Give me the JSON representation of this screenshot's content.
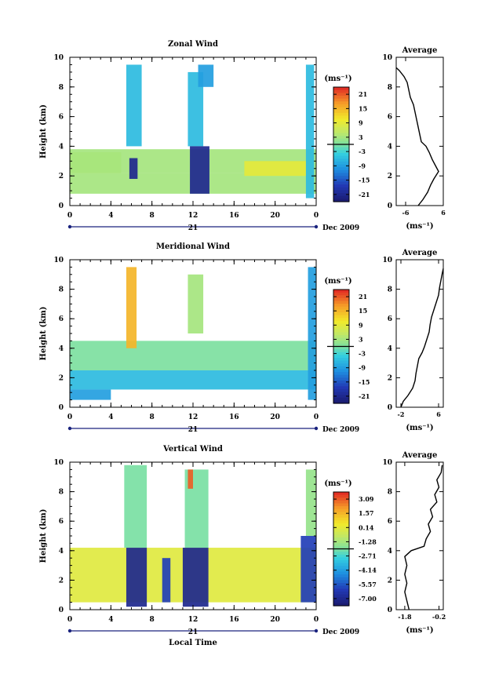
{
  "chart_data": [
    {
      "type": "heatmap",
      "title": "Zonal Wind",
      "ylabel": "Height (km)",
      "xlabel": "",
      "unit_label": "(ms⁻¹)",
      "x_ticks": [
        "0",
        "4",
        "8",
        "12",
        "16",
        "20",
        "0"
      ],
      "y_ticks": [
        "0",
        "2",
        "4",
        "6",
        "8",
        "10"
      ],
      "xlim": [
        0,
        24
      ],
      "ylim": [
        0,
        10
      ],
      "date_tick": "21",
      "date_label": "Dec 2009",
      "colorbar": {
        "ticks": [
          "21",
          "15",
          "9",
          "3",
          "-3",
          "-9",
          "-15",
          "-21"
        ],
        "range": [
          -24,
          24
        ]
      },
      "average": {
        "title": "Average",
        "xlabel": "(ms⁻¹)",
        "x_ticks": [
          "-6",
          "6"
        ],
        "xlim": [
          -9,
          6
        ],
        "y_ticks": [
          "0",
          "2",
          "4",
          "6",
          "8",
          "10"
        ],
        "profile": [
          [
            -2,
            0
          ],
          [
            -0.5,
            0.4
          ],
          [
            1,
            0.9
          ],
          [
            2,
            1.4
          ],
          [
            3,
            1.8
          ],
          [
            4.5,
            2.3
          ],
          [
            3.5,
            2.7
          ],
          [
            2.5,
            3.1
          ],
          [
            1.5,
            3.6
          ],
          [
            0.5,
            4.0
          ],
          [
            -1,
            4.3
          ],
          [
            -1.5,
            4.8
          ],
          [
            -2,
            5.3
          ],
          [
            -2.5,
            5.8
          ],
          [
            -3,
            6.3
          ],
          [
            -3.5,
            6.8
          ],
          [
            -4.5,
            7.3
          ],
          [
            -5,
            7.8
          ],
          [
            -5.5,
            8.3
          ],
          [
            -6.5,
            8.7
          ],
          [
            -8,
            9.1
          ],
          [
            -9,
            9.3
          ]
        ]
      },
      "patches": [
        {
          "x": 0,
          "x2": 5,
          "y": 2.2,
          "y2": 3.6,
          "value": 6
        },
        {
          "x": 0,
          "x2": 24,
          "y": 0.8,
          "y2": 2.2,
          "value": 3
        },
        {
          "x": 0,
          "x2": 24,
          "y": 2.2,
          "y2": 3.8,
          "value": 3
        },
        {
          "x": 5.5,
          "x2": 7,
          "y": 4,
          "y2": 9.5,
          "value": -6
        },
        {
          "x": 5.8,
          "x2": 6.6,
          "y": 1.8,
          "y2": 3.2,
          "value": -21
        },
        {
          "x": 11.5,
          "x2": 13,
          "y": 4,
          "y2": 9,
          "value": -6
        },
        {
          "x": 11.7,
          "x2": 13.6,
          "y": 0.8,
          "y2": 4,
          "value": -21
        },
        {
          "x": 17,
          "x2": 23,
          "y": 2,
          "y2": 3,
          "value": 9
        },
        {
          "x": 12.5,
          "x2": 14,
          "y": 8,
          "y2": 9.5,
          "value": -9
        },
        {
          "x": 23,
          "x2": 23.8,
          "y": 0.5,
          "y2": 9.5,
          "value": -6
        }
      ]
    },
    {
      "type": "heatmap",
      "title": "Meridional Wind",
      "ylabel": "Height (km)",
      "xlabel": "",
      "unit_label": "(ms⁻¹)",
      "x_ticks": [
        "0",
        "4",
        "8",
        "12",
        "16",
        "20",
        "0"
      ],
      "y_ticks": [
        "0",
        "2",
        "4",
        "6",
        "8",
        "10"
      ],
      "xlim": [
        0,
        24
      ],
      "ylim": [
        0,
        10
      ],
      "date_tick": "21",
      "date_label": "Dec 2009",
      "colorbar": {
        "ticks": [
          "21",
          "15",
          "9",
          "3",
          "-3",
          "-9",
          "-15",
          "-21"
        ],
        "range": [
          -24,
          24
        ]
      },
      "average": {
        "title": "Average",
        "xlabel": "(ms⁻¹)",
        "x_ticks": [
          "-2",
          "6"
        ],
        "xlim": [
          -3,
          7
        ],
        "y_ticks": [
          "0",
          "2",
          "4",
          "6",
          "8",
          "10"
        ],
        "profile": [
          [
            -2,
            0
          ],
          [
            -1.5,
            0.4
          ],
          [
            -0.5,
            0.8
          ],
          [
            0.5,
            1.3
          ],
          [
            1,
            1.8
          ],
          [
            1.2,
            2.3
          ],
          [
            1.5,
            2.8
          ],
          [
            1.8,
            3.3
          ],
          [
            2.5,
            3.7
          ],
          [
            3,
            4.1
          ],
          [
            3.5,
            4.6
          ],
          [
            4,
            5.1
          ],
          [
            4.2,
            5.6
          ],
          [
            4.5,
            6.1
          ],
          [
            5,
            6.6
          ],
          [
            5.5,
            7.1
          ],
          [
            6,
            7.6
          ],
          [
            6.2,
            8.1
          ],
          [
            6.5,
            8.6
          ],
          [
            6.8,
            9.1
          ],
          [
            7,
            9.4
          ]
        ]
      },
      "patches": [
        {
          "x": 0,
          "x2": 24,
          "y": 1.2,
          "y2": 2.5,
          "value": -6
        },
        {
          "x": 0,
          "x2": 24,
          "y": 2.5,
          "y2": 4.5,
          "value": 0
        },
        {
          "x": 5.5,
          "x2": 6.5,
          "y": 4,
          "y2": 9.5,
          "value": 15
        },
        {
          "x": 11.5,
          "x2": 13,
          "y": 5,
          "y2": 9,
          "value": 3
        },
        {
          "x": 23.2,
          "x2": 24,
          "y": 0.5,
          "y2": 9.5,
          "value": -9
        },
        {
          "x": 0,
          "x2": 4,
          "y": 0.5,
          "y2": 1.2,
          "value": -9
        }
      ]
    },
    {
      "type": "heatmap",
      "title": "Vertical Wind",
      "ylabel": "Height (km)",
      "xlabel": "Local Time",
      "unit_label": "(ms⁻¹)",
      "x_ticks": [
        "0",
        "4",
        "8",
        "12",
        "16",
        "20",
        "0"
      ],
      "y_ticks": [
        "0",
        "2",
        "4",
        "6",
        "8",
        "10"
      ],
      "xlim": [
        0,
        24
      ],
      "ylim": [
        0,
        10
      ],
      "date_tick": "21",
      "date_label": "Dec 2009",
      "colorbar": {
        "ticks": [
          "3.09",
          "1.57",
          "0.14",
          "-1.28",
          "-2.71",
          "-4.14",
          "-5.57",
          "-7.00"
        ],
        "range": [
          -7.7,
          3.8
        ]
      },
      "average": {
        "title": "Average",
        "xlabel": "(ms⁻¹)",
        "x_ticks": [
          "-1.8",
          "-0.2"
        ],
        "xlim": [
          -2.2,
          0.0
        ],
        "y_ticks": [
          "0",
          "2",
          "4",
          "6",
          "8",
          "10"
        ],
        "profile": [
          [
            -1.6,
            0
          ],
          [
            -1.7,
            0.6
          ],
          [
            -1.8,
            1.2
          ],
          [
            -1.7,
            1.8
          ],
          [
            -1.8,
            2.4
          ],
          [
            -1.7,
            3.0
          ],
          [
            -1.8,
            3.6
          ],
          [
            -1.5,
            4.0
          ],
          [
            -0.9,
            4.3
          ],
          [
            -0.8,
            4.8
          ],
          [
            -0.6,
            5.3
          ],
          [
            -0.7,
            5.8
          ],
          [
            -0.5,
            6.3
          ],
          [
            -0.6,
            6.8
          ],
          [
            -0.3,
            7.3
          ],
          [
            -0.4,
            7.8
          ],
          [
            -0.2,
            8.3
          ],
          [
            -0.3,
            8.8
          ],
          [
            -0.1,
            9.3
          ],
          [
            -0.05,
            9.8
          ]
        ]
      },
      "patches": [
        {
          "x": 0,
          "x2": 24,
          "y": 0.5,
          "y2": 4.2,
          "value": 0.1
        },
        {
          "x": 5.5,
          "x2": 7.5,
          "y": 0.2,
          "y2": 4.2,
          "value": -7
        },
        {
          "x": 5.3,
          "x2": 7.5,
          "y": 4.2,
          "y2": 9.8,
          "value": -2
        },
        {
          "x": 9,
          "x2": 9.8,
          "y": 0.5,
          "y2": 3.5,
          "value": -6
        },
        {
          "x": 11,
          "x2": 13.5,
          "y": 0.2,
          "y2": 4.2,
          "value": -7
        },
        {
          "x": 11.2,
          "x2": 13.5,
          "y": 4.2,
          "y2": 9.5,
          "value": -2
        },
        {
          "x": 11.5,
          "x2": 12,
          "y": 8.2,
          "y2": 9.5,
          "value": 3.0
        },
        {
          "x": 22.5,
          "x2": 24,
          "y": 0.5,
          "y2": 5,
          "value": -6
        },
        {
          "x": 23,
          "x2": 24,
          "y": 5,
          "y2": 9.5,
          "value": -1.5
        }
      ]
    }
  ]
}
